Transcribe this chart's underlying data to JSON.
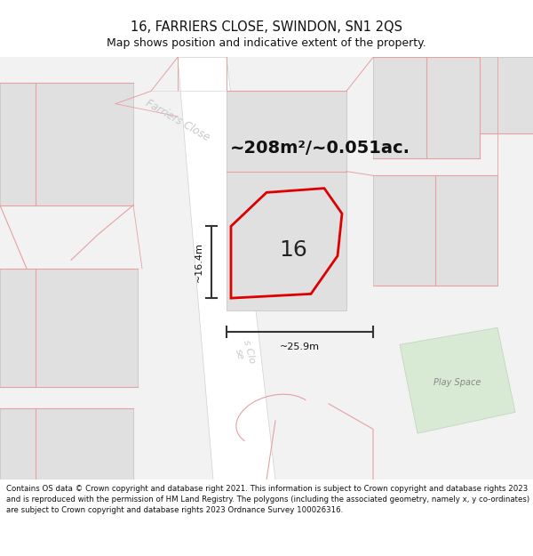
{
  "title": "16, FARRIERS CLOSE, SWINDON, SN1 2QS",
  "subtitle": "Map shows position and indicative extent of the property.",
  "area_text": "~208m²/~0.051ac.",
  "number_label": "16",
  "dim_width": "~25.9m",
  "dim_height": "~16.4m",
  "street_label_upper": "Farriers Close",
  "street_label_lower": "s Clo\nse",
  "play_space_label": "Play Space",
  "footer_text": "Contains OS data © Crown copyright and database right 2021. This information is subject to Crown copyright and database rights 2023 and is reproduced with the permission of HM Land Registry. The polygons (including the associated geometry, namely x, y co-ordinates) are subject to Crown copyright and database rights 2023 Ordnance Survey 100026316.",
  "bg_color": "#f2f2f2",
  "road_color": "#ffffff",
  "building_color": "#e0e0e0",
  "building_outline": "#cccccc",
  "red_line_color": "#dd0000",
  "pink_line_color": "#e8a0a0",
  "dim_line_color": "#333333",
  "play_space_color": "#d8ead4",
  "play_space_outline": "#c0d8bc",
  "street_text_color": "#c0c0c0",
  "figsize": [
    6.0,
    6.25
  ],
  "dpi": 100
}
